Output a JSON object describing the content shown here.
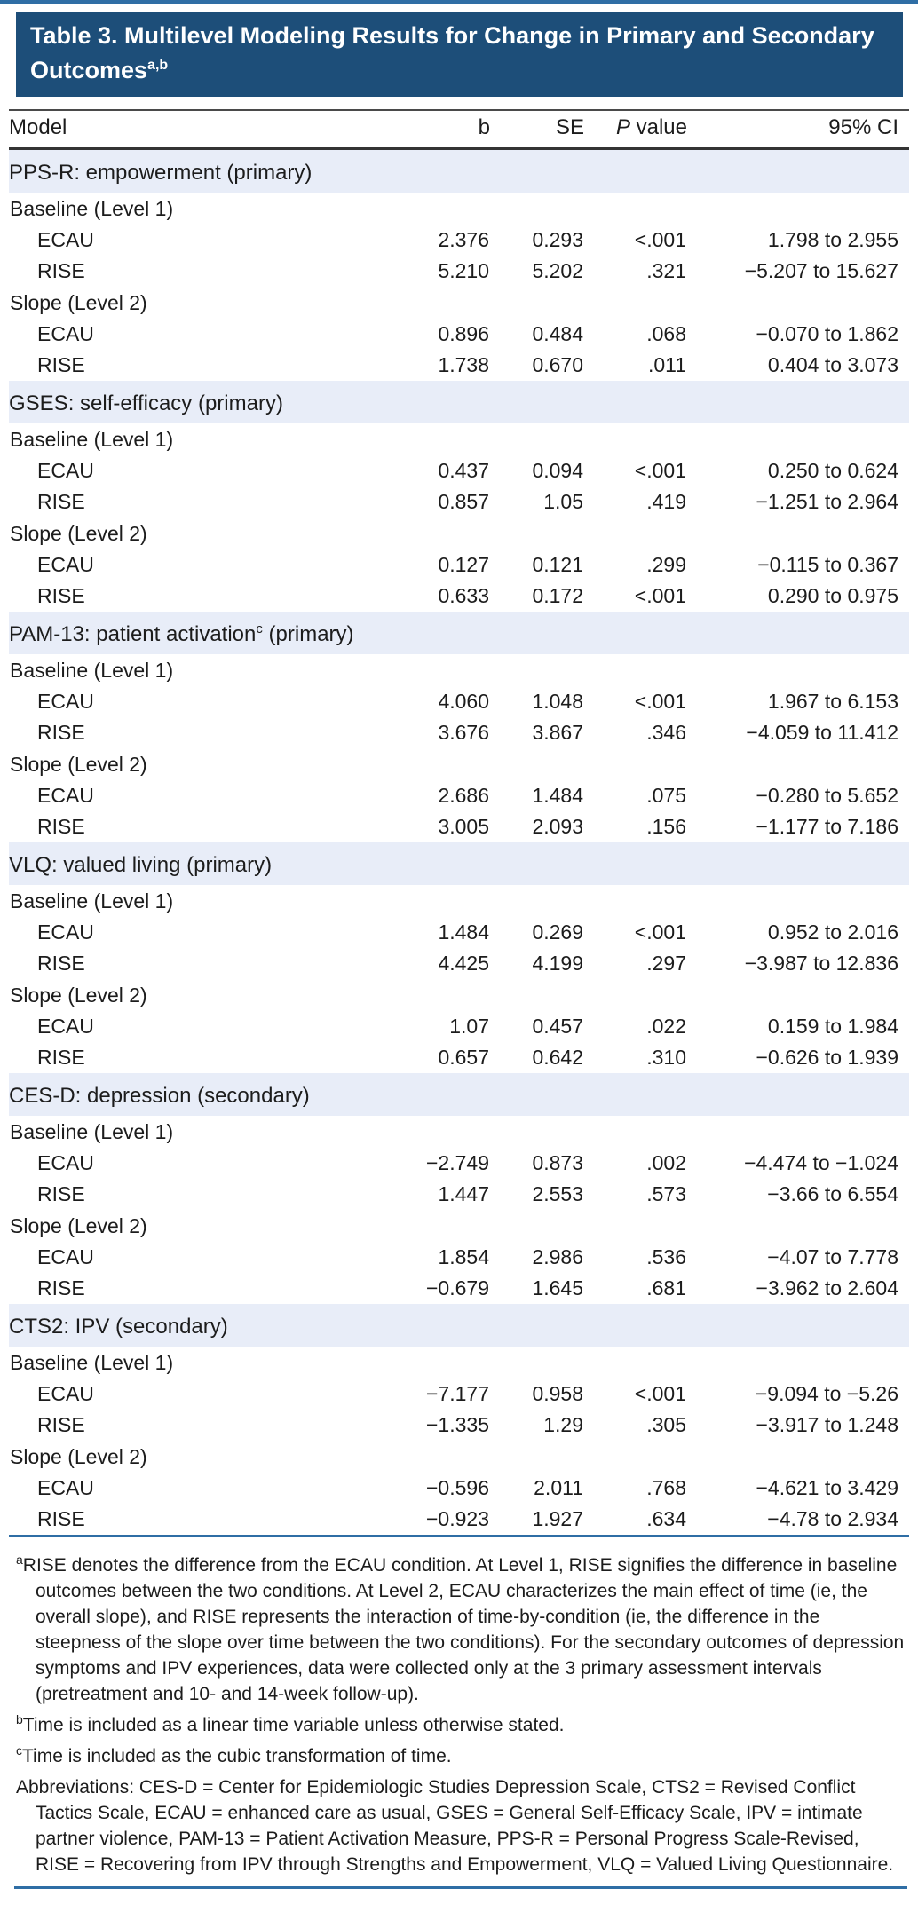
{
  "title": {
    "text": "Table 3. Multilevel Modeling Results for Change in Primary and Secondary Outcomes",
    "superscript": "a,b"
  },
  "colors": {
    "title_bar_navy": "#1d4e79",
    "section_band_blue": "#e8edf8",
    "rule_steel_blue": "#2f6ea5",
    "header_rule_dark": "#343434",
    "text": "#1c1c1c"
  },
  "table": {
    "columns": {
      "model": "Model",
      "b": "b",
      "se": "SE",
      "p_italic": "P",
      "p_rest": " value",
      "ci": "95% CI"
    },
    "sections": [
      {
        "pre": "PPS-R: empowerment (primary)",
        "sup": "",
        "post": "",
        "groups": [
          {
            "label": "Baseline (Level 1)",
            "rows": [
              {
                "label": "ECAU",
                "b": "2.376",
                "se": "0.293",
                "p": "<.001",
                "ci": "1.798 to 2.955"
              },
              {
                "label": "RISE",
                "b": "5.210",
                "se": "5.202",
                "p": ".321",
                "ci": "−5.207 to 15.627"
              }
            ]
          },
          {
            "label": "Slope (Level 2)",
            "rows": [
              {
                "label": "ECAU",
                "b": "0.896",
                "se": "0.484",
                "p": ".068",
                "ci": "−0.070 to 1.862"
              },
              {
                "label": "RISE",
                "b": "1.738",
                "se": "0.670",
                "p": ".011",
                "ci": "0.404 to 3.073"
              }
            ]
          }
        ]
      },
      {
        "pre": "GSES: self-efficacy (primary)",
        "sup": "",
        "post": "",
        "groups": [
          {
            "label": "Baseline (Level 1)",
            "rows": [
              {
                "label": "ECAU",
                "b": "0.437",
                "se": "0.094",
                "p": "<.001",
                "ci": "0.250 to 0.624"
              },
              {
                "label": "RISE",
                "b": "0.857",
                "se": "1.05",
                "p": ".419",
                "ci": "−1.251 to 2.964"
              }
            ]
          },
          {
            "label": "Slope (Level 2)",
            "rows": [
              {
                "label": "ECAU",
                "b": "0.127",
                "se": "0.121",
                "p": ".299",
                "ci": "−0.115 to 0.367"
              },
              {
                "label": "RISE",
                "b": "0.633",
                "se": "0.172",
                "p": "<.001",
                "ci": "0.290 to 0.975"
              }
            ]
          }
        ]
      },
      {
        "pre": "PAM-13: patient activation",
        "sup": "c",
        "post": " (primary)",
        "groups": [
          {
            "label": "Baseline (Level 1)",
            "rows": [
              {
                "label": "ECAU",
                "b": "4.060",
                "se": "1.048",
                "p": "<.001",
                "ci": "1.967 to 6.153"
              },
              {
                "label": "RISE",
                "b": "3.676",
                "se": "3.867",
                "p": ".346",
                "ci": "−4.059 to 11.412"
              }
            ]
          },
          {
            "label": "Slope (Level 2)",
            "rows": [
              {
                "label": "ECAU",
                "b": "2.686",
                "se": "1.484",
                "p": ".075",
                "ci": "−0.280 to 5.652"
              },
              {
                "label": "RISE",
                "b": "3.005",
                "se": "2.093",
                "p": ".156",
                "ci": "−1.177 to 7.186"
              }
            ]
          }
        ]
      },
      {
        "pre": "VLQ: valued living (primary)",
        "sup": "",
        "post": "",
        "groups": [
          {
            "label": "Baseline (Level 1)",
            "rows": [
              {
                "label": "ECAU",
                "b": "1.484",
                "se": "0.269",
                "p": "<.001",
                "ci": "0.952 to 2.016"
              },
              {
                "label": "RISE",
                "b": "4.425",
                "se": "4.199",
                "p": ".297",
                "ci": "−3.987 to 12.836"
              }
            ]
          },
          {
            "label": "Slope (Level 2)",
            "rows": [
              {
                "label": "ECAU",
                "b": "1.07",
                "se": "0.457",
                "p": ".022",
                "ci": "0.159 to 1.984"
              },
              {
                "label": "RISE",
                "b": "0.657",
                "se": "0.642",
                "p": ".310",
                "ci": "−0.626 to 1.939"
              }
            ]
          }
        ]
      },
      {
        "pre": "CES-D: depression (secondary)",
        "sup": "",
        "post": "",
        "groups": [
          {
            "label": "Baseline (Level 1)",
            "rows": [
              {
                "label": "ECAU",
                "b": "−2.749",
                "se": "0.873",
                "p": ".002",
                "ci": "−4.474 to −1.024"
              },
              {
                "label": "RISE",
                "b": "1.447",
                "se": "2.553",
                "p": ".573",
                "ci": "−3.66 to 6.554"
              }
            ]
          },
          {
            "label": "Slope (Level 2)",
            "rows": [
              {
                "label": "ECAU",
                "b": "1.854",
                "se": "2.986",
                "p": ".536",
                "ci": "−4.07 to 7.778"
              },
              {
                "label": "RISE",
                "b": "−0.679",
                "se": "1.645",
                "p": ".681",
                "ci": "−3.962 to 2.604"
              }
            ]
          }
        ]
      },
      {
        "pre": "CTS2: IPV (secondary)",
        "sup": "",
        "post": "",
        "groups": [
          {
            "label": "Baseline (Level 1)",
            "rows": [
              {
                "label": "ECAU",
                "b": "−7.177",
                "se": "0.958",
                "p": "<.001",
                "ci": "−9.094 to −5.26"
              },
              {
                "label": "RISE",
                "b": "−1.335",
                "se": "1.29",
                "p": ".305",
                "ci": "−3.917 to 1.248"
              }
            ]
          },
          {
            "label": "Slope (Level 2)",
            "rows": [
              {
                "label": "ECAU",
                "b": "−0.596",
                "se": "2.011",
                "p": ".768",
                "ci": "−4.621 to 3.429"
              },
              {
                "label": "RISE",
                "b": "−0.923",
                "se": "1.927",
                "p": ".634",
                "ci": "−4.78 to 2.934"
              }
            ]
          }
        ]
      }
    ]
  },
  "footnotes": [
    {
      "marker": "a",
      "text": "RISE denotes the difference from the ECAU condition. At Level 1, RISE signifies the difference in baseline outcomes between the two conditions. At Level 2, ECAU characterizes the main effect of time (ie, the overall slope), and RISE represents the interaction of time-by-condition (ie, the difference in the steepness of the slope over time between the two conditions). For the secondary outcomes of depression symptoms and IPV experiences, data were collected only at the 3 primary assessment intervals (pretreatment and 10- and 14-week follow-up)."
    },
    {
      "marker": "b",
      "text": "Time is included as a linear time variable unless otherwise stated."
    },
    {
      "marker": "c",
      "text": "Time is included as the cubic transformation of time."
    },
    {
      "marker": "",
      "text": "Abbreviations: CES-D = Center for Epidemiologic Studies Depression Scale, CTS2 = Revised Conflict Tactics Scale, ECAU = enhanced care as usual, GSES = General Self-Efficacy Scale, IPV = intimate partner violence, PAM-13 = Patient Activation Measure, PPS-R = Personal Progress Scale-Revised, RISE = Recovering from IPV through Strengths and Empowerment, VLQ = Valued Living Questionnaire."
    }
  ]
}
